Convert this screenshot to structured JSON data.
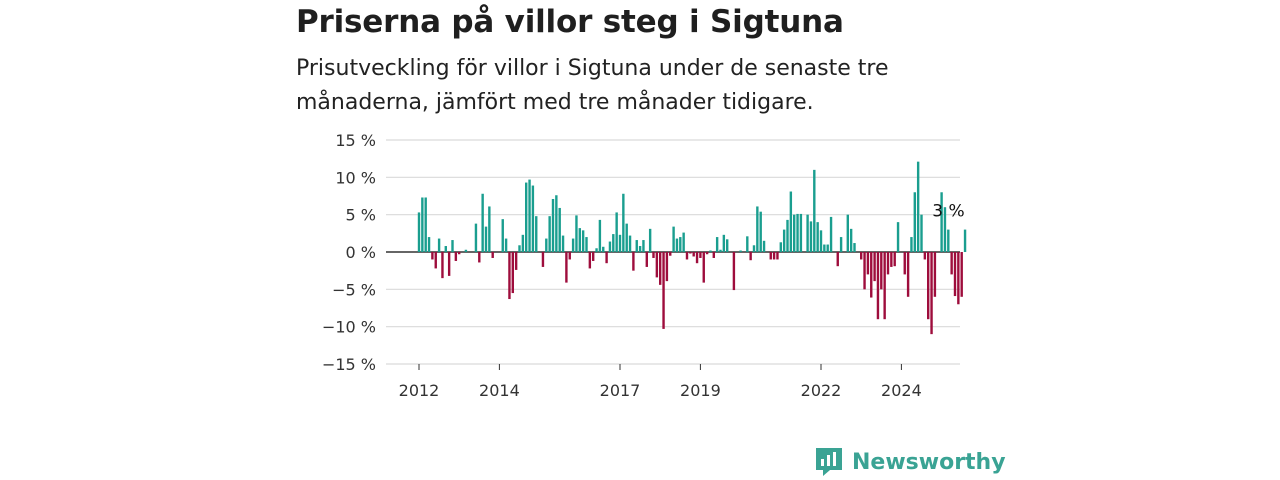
{
  "title": "Priserna på villor steg i Sigtuna",
  "subtitle": "Prisutveckling för villor i Sigtuna under de senaste tre månaderna, jämfört med tre månader tidigare.",
  "brand": {
    "name": "Newsworthy",
    "icon": "newsworthy-logo-icon",
    "color": "#3aa394"
  },
  "colors": {
    "positive": "#1a9e8f",
    "negative": "#9e0d3c",
    "grid": "#d9d9d9",
    "baseline": "#333333"
  },
  "chart_data": {
    "type": "bar",
    "ylim": [
      -15,
      15
    ],
    "yticks": [
      15,
      10,
      5,
      0,
      -5,
      -10,
      -15
    ],
    "ytick_labels": [
      "15 %",
      "10 %",
      "5 %",
      "0 %",
      "−5 %",
      "−10 %",
      "−15 %"
    ],
    "x_start": "2012-01",
    "xtick_labels": [
      "2012",
      "2014",
      "2017",
      "2019",
      "2022",
      "2024"
    ],
    "xtick_month_index": [
      0,
      24,
      60,
      84,
      120,
      144
    ],
    "grid": true,
    "annotation": {
      "text": "3 %",
      "month_index": 158
    },
    "values": [
      5.3,
      7.3,
      7.3,
      2.0,
      -1.0,
      -2.2,
      1.8,
      -3.5,
      0.8,
      -3.2,
      1.6,
      -1.2,
      -0.3,
      0,
      0.3,
      0,
      0,
      3.8,
      -1.4,
      7.8,
      3.4,
      6.1,
      -0.8,
      0,
      0,
      4.4,
      1.8,
      -6.3,
      -5.5,
      -2.4,
      0.9,
      2.3,
      9.3,
      9.7,
      8.9,
      4.8,
      0,
      -2.0,
      1.8,
      4.8,
      7.1,
      7.6,
      5.9,
      2.2,
      -4.1,
      -1.0,
      1.8,
      4.9,
      3.2,
      2.9,
      2.0,
      -2.2,
      -1.2,
      0.5,
      4.3,
      0.7,
      -1.5,
      1.4,
      2.4,
      5.3,
      2.3,
      7.8,
      3.8,
      2.2,
      -2.5,
      1.6,
      0.8,
      1.6,
      -2.0,
      3.1,
      -0.8,
      -3.4,
      -4.4,
      -10.3,
      -3.9,
      -0.5,
      3.4,
      1.8,
      2.0,
      2.6,
      -1.0,
      -0.2,
      -0.6,
      -1.5,
      -0.8,
      -4.1,
      -0.3,
      0.2,
      -0.8,
      2.0,
      0.3,
      2.3,
      1.7,
      0,
      -5.1,
      0,
      0.2,
      0,
      2.1,
      -1.1,
      0.9,
      6.1,
      5.4,
      1.5,
      0,
      -1.0,
      -1.0,
      -1.0,
      1.3,
      3.0,
      4.3,
      8.1,
      5.0,
      5.1,
      5.1,
      0,
      5.0,
      4.1,
      11.0,
      4.0,
      2.9,
      1.0,
      1.0,
      4.7,
      0,
      -1.9,
      2.0,
      0,
      5.0,
      3.1,
      1.2,
      0,
      -1.0,
      -5.0,
      -3.0,
      -6.1,
      -3.9,
      -9.0,
      -5.0,
      -9.0,
      -3.0,
      -2.0,
      -1.9,
      4.0,
      0,
      -3.0,
      -6.0,
      2.0,
      8.0,
      12.1,
      5.0,
      -1.0,
      -9.0,
      -11.0,
      -6.0,
      0,
      8.0,
      6.0,
      3.0,
      -3.0,
      -5.9,
      -7.0,
      -6.0,
      3.0
    ]
  }
}
